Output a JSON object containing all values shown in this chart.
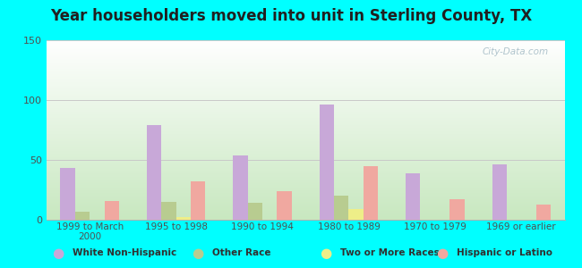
{
  "title": "Year householders moved into unit in Sterling County, TX",
  "categories": [
    "1999 to March\n2000",
    "1995 to 1998",
    "1990 to 1994",
    "1980 to 1989",
    "1970 to 1979",
    "1969 or earlier"
  ],
  "series": {
    "White Non-Hispanic": [
      43,
      79,
      54,
      96,
      39,
      46
    ],
    "Other Race": [
      7,
      15,
      14,
      20,
      0,
      0
    ],
    "Two or More Races": [
      0,
      2,
      0,
      9,
      0,
      0
    ],
    "Hispanic or Latino": [
      16,
      32,
      24,
      45,
      17,
      13
    ]
  },
  "colors": {
    "White Non-Hispanic": "#c8a8d8",
    "Other Race": "#b8cc90",
    "Two or More Races": "#eeee88",
    "Hispanic or Latino": "#f0a8a0"
  },
  "ylim": [
    0,
    150
  ],
  "yticks": [
    0,
    50,
    100,
    150
  ],
  "background_color": "#00ffff",
  "watermark": "City-Data.com",
  "bar_width": 0.17,
  "title_fontsize": 12,
  "tick_fontsize": 7.5
}
